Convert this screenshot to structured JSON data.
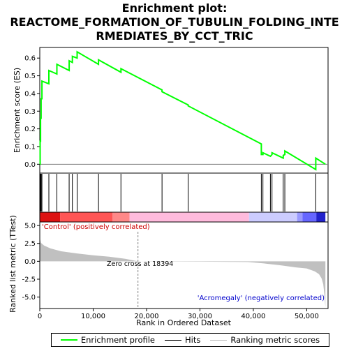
{
  "title_lines": [
    "Enrichment plot:",
    "REACTOME_FORMATION_OF_TUBULIN_FOLDING_INTE",
    "RMEDIATES_BY_CCT_TRIC"
  ],
  "legend": {
    "items": [
      {
        "label": "Enrichment profile",
        "color": "#00ff00"
      },
      {
        "label": "Hits",
        "color": "#000000"
      },
      {
        "label": "Ranking metric scores",
        "color": "#c0c0c0"
      }
    ]
  },
  "colors": {
    "es_line": "#00ff00",
    "metric_fill": "#c0c0c0",
    "positive_band": "#ff0000",
    "negative_band": "#0000ff",
    "zero_cross_line": "#808080"
  },
  "chart_data": {
    "type": "line",
    "x_max": 54000,
    "panels": {
      "es": {
        "ylabel": "Enrichment score (ES)",
        "ylim": [
          -0.05,
          0.66
        ],
        "yticks": [
          0.0,
          0.1,
          0.2,
          0.3,
          0.4,
          0.5,
          0.6
        ],
        "ytick_labels": [
          "0.0",
          "0.1",
          "0.2",
          "0.3",
          "0.4",
          "0.5",
          "0.6"
        ],
        "zero_line": true
      },
      "metric": {
        "ylabel": "Ranked list metric (TTest)",
        "xlabel": "Rank in Ordered Dataset",
        "ylim": [
          -6.6,
          5.5
        ],
        "yticks": [
          5.0,
          2.5,
          0.0,
          -2.5,
          -5.0
        ],
        "ytick_labels": [
          "5.0",
          "2.5",
          "0.0",
          "-2.5",
          "-5.0"
        ],
        "xticks": [
          0,
          10000,
          20000,
          30000,
          40000,
          50000
        ],
        "xtick_labels": [
          "0",
          "10,000",
          "20,000",
          "30,000",
          "40,000",
          "50,000"
        ],
        "pos_label": "'Control' (positively correlated)",
        "neg_label": "'Acromegaly' (negatively correlated)",
        "zero_cross_label": "Zero cross at 18394",
        "zero_cross": 18394
      }
    },
    "hits": [
      60,
      150,
      250,
      400,
      1700,
      3200,
      5500,
      6100,
      7000,
      11000,
      15200,
      22900,
      27800,
      41500,
      41800,
      43200,
      43500,
      45600,
      45900,
      51700
    ],
    "es_profile": {
      "x": [
        0,
        60,
        60,
        150,
        150,
        250,
        250,
        400,
        400,
        1700,
        1700,
        3200,
        3200,
        5500,
        5500,
        6100,
        6100,
        7000,
        7000,
        11000,
        11000,
        15200,
        15200,
        22900,
        22900,
        27800,
        27800,
        41500,
        41500,
        41800,
        41800,
        43200,
        43200,
        43500,
        43500,
        45600,
        45600,
        45900,
        45900,
        51700,
        51700,
        53500
      ],
      "y": [
        0.0,
        0.0,
        0.13,
        0.13,
        0.26,
        0.26,
        0.37,
        0.37,
        0.47,
        0.455,
        0.53,
        0.51,
        0.565,
        0.53,
        0.585,
        0.575,
        0.61,
        0.6,
        0.635,
        0.565,
        0.59,
        0.52,
        0.54,
        0.42,
        0.41,
        0.335,
        0.33,
        0.115,
        0.055,
        0.055,
        0.065,
        0.045,
        0.045,
        0.055,
        0.065,
        0.035,
        0.05,
        0.055,
        0.075,
        -0.03,
        0.035,
        0.0
      ]
    },
    "metric_curve": {
      "x": [
        0,
        200,
        800,
        2000,
        4000,
        7000,
        10000,
        13000,
        16000,
        18394,
        21000,
        30000,
        39000,
        42000,
        45000,
        48000,
        50000,
        51500,
        52300,
        52800,
        53100,
        53300,
        53500
      ],
      "y": [
        3.3,
        2.6,
        2.2,
        1.8,
        1.4,
        1.1,
        0.85,
        0.65,
        0.35,
        0.0,
        -0.02,
        -0.05,
        -0.1,
        -0.3,
        -0.55,
        -0.85,
        -1.0,
        -1.4,
        -1.8,
        -2.4,
        -3.2,
        -4.5,
        -6.4
      ]
    },
    "band_segments": [
      {
        "from": 0,
        "to": 3800,
        "color": "#dd1111"
      },
      {
        "from": 3800,
        "to": 13600,
        "color": "#ff5555"
      },
      {
        "from": 13600,
        "to": 16800,
        "color": "#ff8888"
      },
      {
        "from": 16800,
        "to": 39200,
        "color": "#ffbbdd"
      },
      {
        "from": 39200,
        "to": 48200,
        "color": "#ccccff"
      },
      {
        "from": 48200,
        "to": 49200,
        "color": "#9999ff"
      },
      {
        "from": 49200,
        "to": 51800,
        "color": "#6666ff"
      },
      {
        "from": 51800,
        "to": 53500,
        "color": "#2222cc"
      }
    ]
  }
}
